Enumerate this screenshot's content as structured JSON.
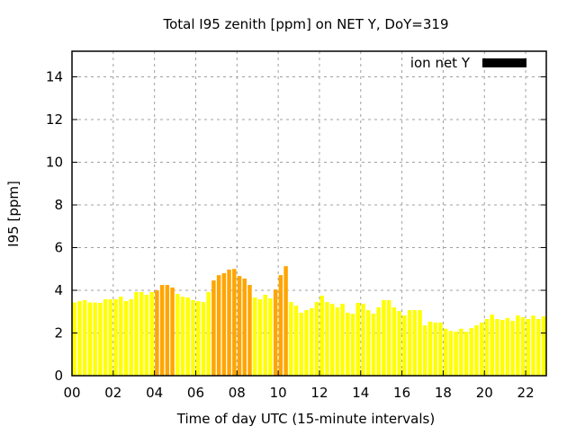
{
  "chart_data": {
    "type": "bar",
    "title": "Total I95 zenith [ppm] on NET Y, DoY=319",
    "xlabel": "Time of day UTC (15-minute intervals)",
    "ylabel": "I95 [ppm]",
    "xlim": [
      0,
      23
    ],
    "ylim": [
      0,
      15.2
    ],
    "xticks": [
      "00",
      "02",
      "04",
      "06",
      "08",
      "10",
      "12",
      "14",
      "16",
      "18",
      "20",
      "22"
    ],
    "yticks": [
      "0",
      "2",
      "4",
      "6",
      "8",
      "10",
      "12",
      "14"
    ],
    "grid": true,
    "legend": {
      "label": "ion net Y",
      "placement": "top-right",
      "color": "#000000"
    },
    "bar_interval_hours": 0.25,
    "highlight_threshold": 4.0,
    "colors": {
      "normal": "#ffff00",
      "high": "#ffa500"
    },
    "values": [
      3.43,
      3.49,
      3.54,
      3.43,
      3.43,
      3.41,
      3.58,
      3.58,
      3.58,
      3.7,
      3.49,
      3.58,
      3.92,
      3.92,
      3.79,
      3.92,
      4.0,
      4.25,
      4.25,
      4.13,
      3.83,
      3.7,
      3.66,
      3.54,
      3.49,
      3.45,
      3.92,
      4.46,
      4.71,
      4.8,
      4.97,
      5.0,
      4.67,
      4.55,
      4.25,
      3.66,
      3.58,
      3.79,
      3.62,
      4.04,
      4.71,
      5.13,
      3.45,
      3.28,
      2.95,
      3.07,
      3.16,
      3.45,
      3.75,
      3.45,
      3.37,
      3.2,
      3.37,
      2.95,
      2.9,
      3.41,
      3.37,
      3.07,
      2.9,
      3.2,
      3.54,
      3.54,
      3.2,
      3.03,
      2.82,
      3.07,
      3.07,
      3.07,
      2.36,
      2.53,
      2.49,
      2.49,
      2.2,
      2.1,
      2.06,
      2.2,
      2.06,
      2.23,
      2.36,
      2.49,
      2.65,
      2.86,
      2.65,
      2.61,
      2.7,
      2.57,
      2.82,
      2.74,
      2.65,
      2.82,
      2.65,
      2.78
    ]
  }
}
